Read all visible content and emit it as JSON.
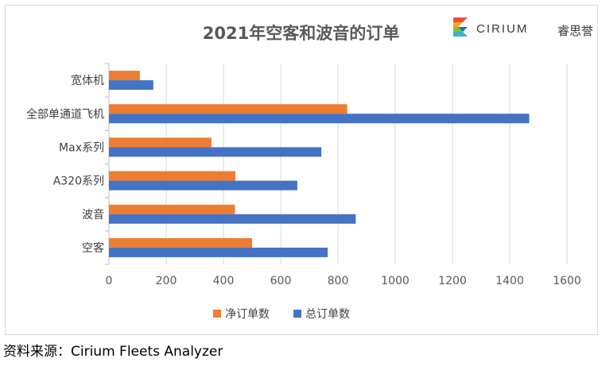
{
  "chart_data": {
    "type": "bar",
    "orientation": "horizontal",
    "title": "2021年空客和波音的订单",
    "categories": [
      "宽体机",
      "全部单通道飞机",
      "Max系列",
      "A320系列",
      "波音",
      "空客"
    ],
    "series": [
      {
        "name": "净订单数",
        "color": "#ED7D31",
        "values": [
          108,
          832,
          358,
          442,
          440,
          500
        ]
      },
      {
        "name": "总订单数",
        "color": "#4472C4",
        "values": [
          155,
          1468,
          742,
          658,
          862,
          764
        ]
      }
    ],
    "xlim": [
      0,
      1600
    ],
    "xticks": [
      "0",
      "200",
      "400",
      "600",
      "800",
      "1000",
      "1200",
      "1400",
      "1600"
    ],
    "grid": true,
    "legend": "bottom"
  },
  "logo": {
    "text": "CIRIUM",
    "cn": "睿思誉"
  },
  "source": "资料来源：Cirium Fleets Analyzer"
}
